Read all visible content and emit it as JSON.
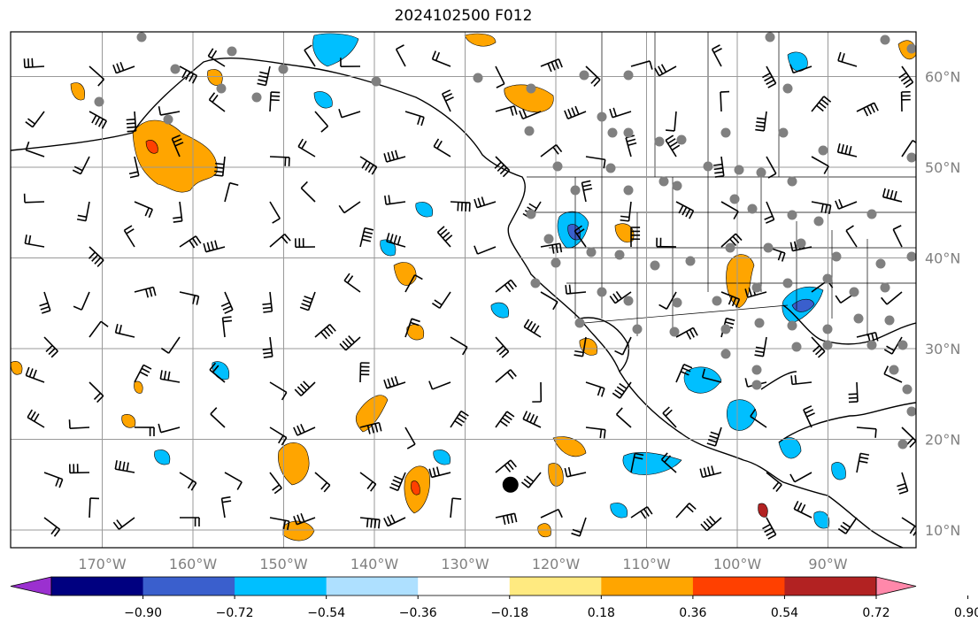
{
  "title": "2024102500 F012",
  "latitude_labels": [
    {
      "text": "60°N",
      "lat": 60
    },
    {
      "text": "50°N",
      "lat": 50
    },
    {
      "text": "40°N",
      "lat": 40
    },
    {
      "text": "30°N",
      "lat": 30
    },
    {
      "text": "20°N",
      "lat": 20
    },
    {
      "text": "10°N",
      "lat": 10
    }
  ],
  "longitude_labels": [
    {
      "text": "170°W",
      "lon": -170
    },
    {
      "text": "160°W",
      "lon": -160
    },
    {
      "text": "150°W",
      "lon": -150
    },
    {
      "text": "140°W",
      "lon": -140
    },
    {
      "text": "130°W",
      "lon": -130
    },
    {
      "text": "120°W",
      "lon": -120
    },
    {
      "text": "110°W",
      "lon": -110
    },
    {
      "text": "100°W",
      "lon": -100
    },
    {
      "text": "90°W",
      "lon": -90
    }
  ],
  "colorbar": {
    "colors": [
      "#9b30d0",
      "#000080",
      "#3a5fcd",
      "#00bfff",
      "#aee0ff",
      "#ffffff",
      "#ffea80",
      "#ffa500",
      "#ff4000",
      "#b22222",
      "#ff88aa"
    ],
    "tick_labels": [
      "−0.90",
      "−0.72",
      "−0.54",
      "−0.36",
      "−0.18",
      "0.18",
      "0.36",
      "0.54",
      "0.72",
      "0.90"
    ]
  },
  "marked_point": {
    "lon": -125,
    "lat": 15
  }
}
